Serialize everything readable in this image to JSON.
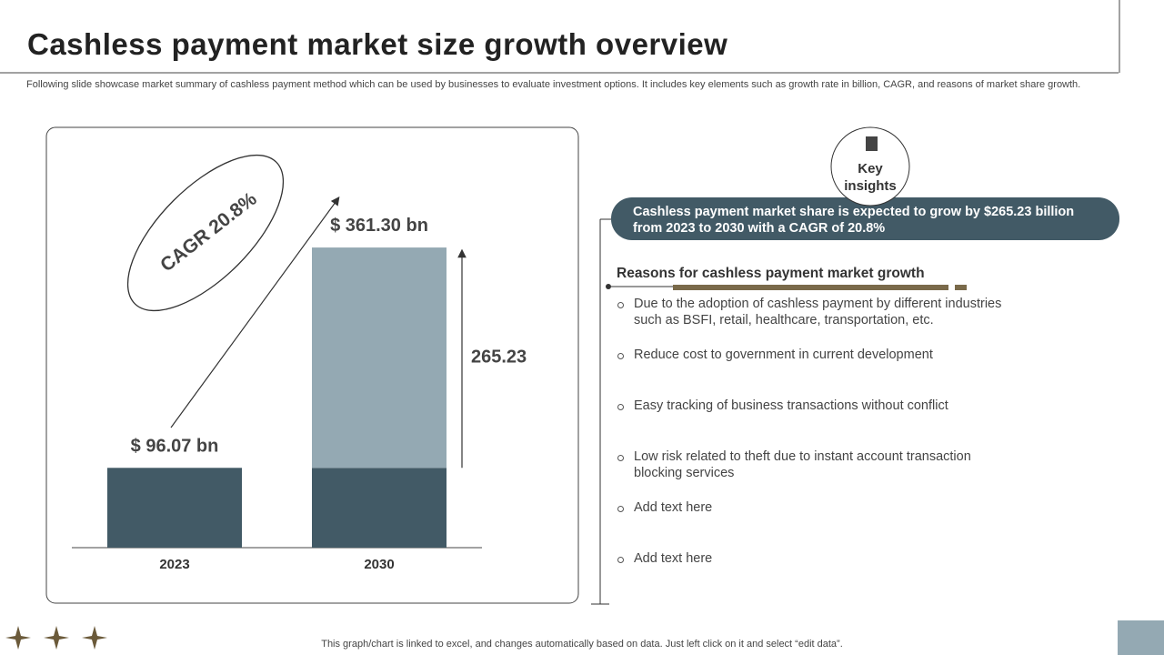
{
  "header": {
    "title": "Cashless payment market size growth overview",
    "subtitle": "Following slide showcase market summary of cashless payment method which can be used by businesses to evaluate investment options. It includes key elements such as growth rate in billion, CAGR, and reasons of market share growth."
  },
  "chart_data": {
    "type": "bar",
    "stacked": true,
    "categories": [
      "2023",
      "2030"
    ],
    "series": [
      {
        "color": "#425a66",
        "values": [
          96.07,
          96.07
        ]
      },
      {
        "color": "#94a9b3",
        "values": [
          null,
          265.23
        ]
      }
    ],
    "total_labels": [
      {
        "value": 96.07,
        "label": "$ 96.07 bn"
      },
      {
        "value": 361.3,
        "label": "$ 361.30 bn"
      }
    ],
    "annotation": "CAGR 20.8%",
    "ylim": [
      0,
      380
    ]
  },
  "insights": {
    "badge": "Key insights",
    "summary": "Cashless payment market share is expected to grow by $265.23 billion from 2023 to 2030 with a CAGR of 20.8%",
    "heading": "Reasons for cashless payment market growth",
    "items": [
      "Due to the adoption of cashless payment by different industries such as BSFI, retail, healthcare, transportation, etc.",
      "Reduce cost to government in current development",
      "Easy tracking of business transactions without conflict",
      "Low risk related to theft due to instant account transaction blocking services",
      "Add text here",
      "Add text here"
    ]
  },
  "footer": "This graph/chart is linked to excel, and changes automatically based on data. Just left click on it and select “edit data”."
}
